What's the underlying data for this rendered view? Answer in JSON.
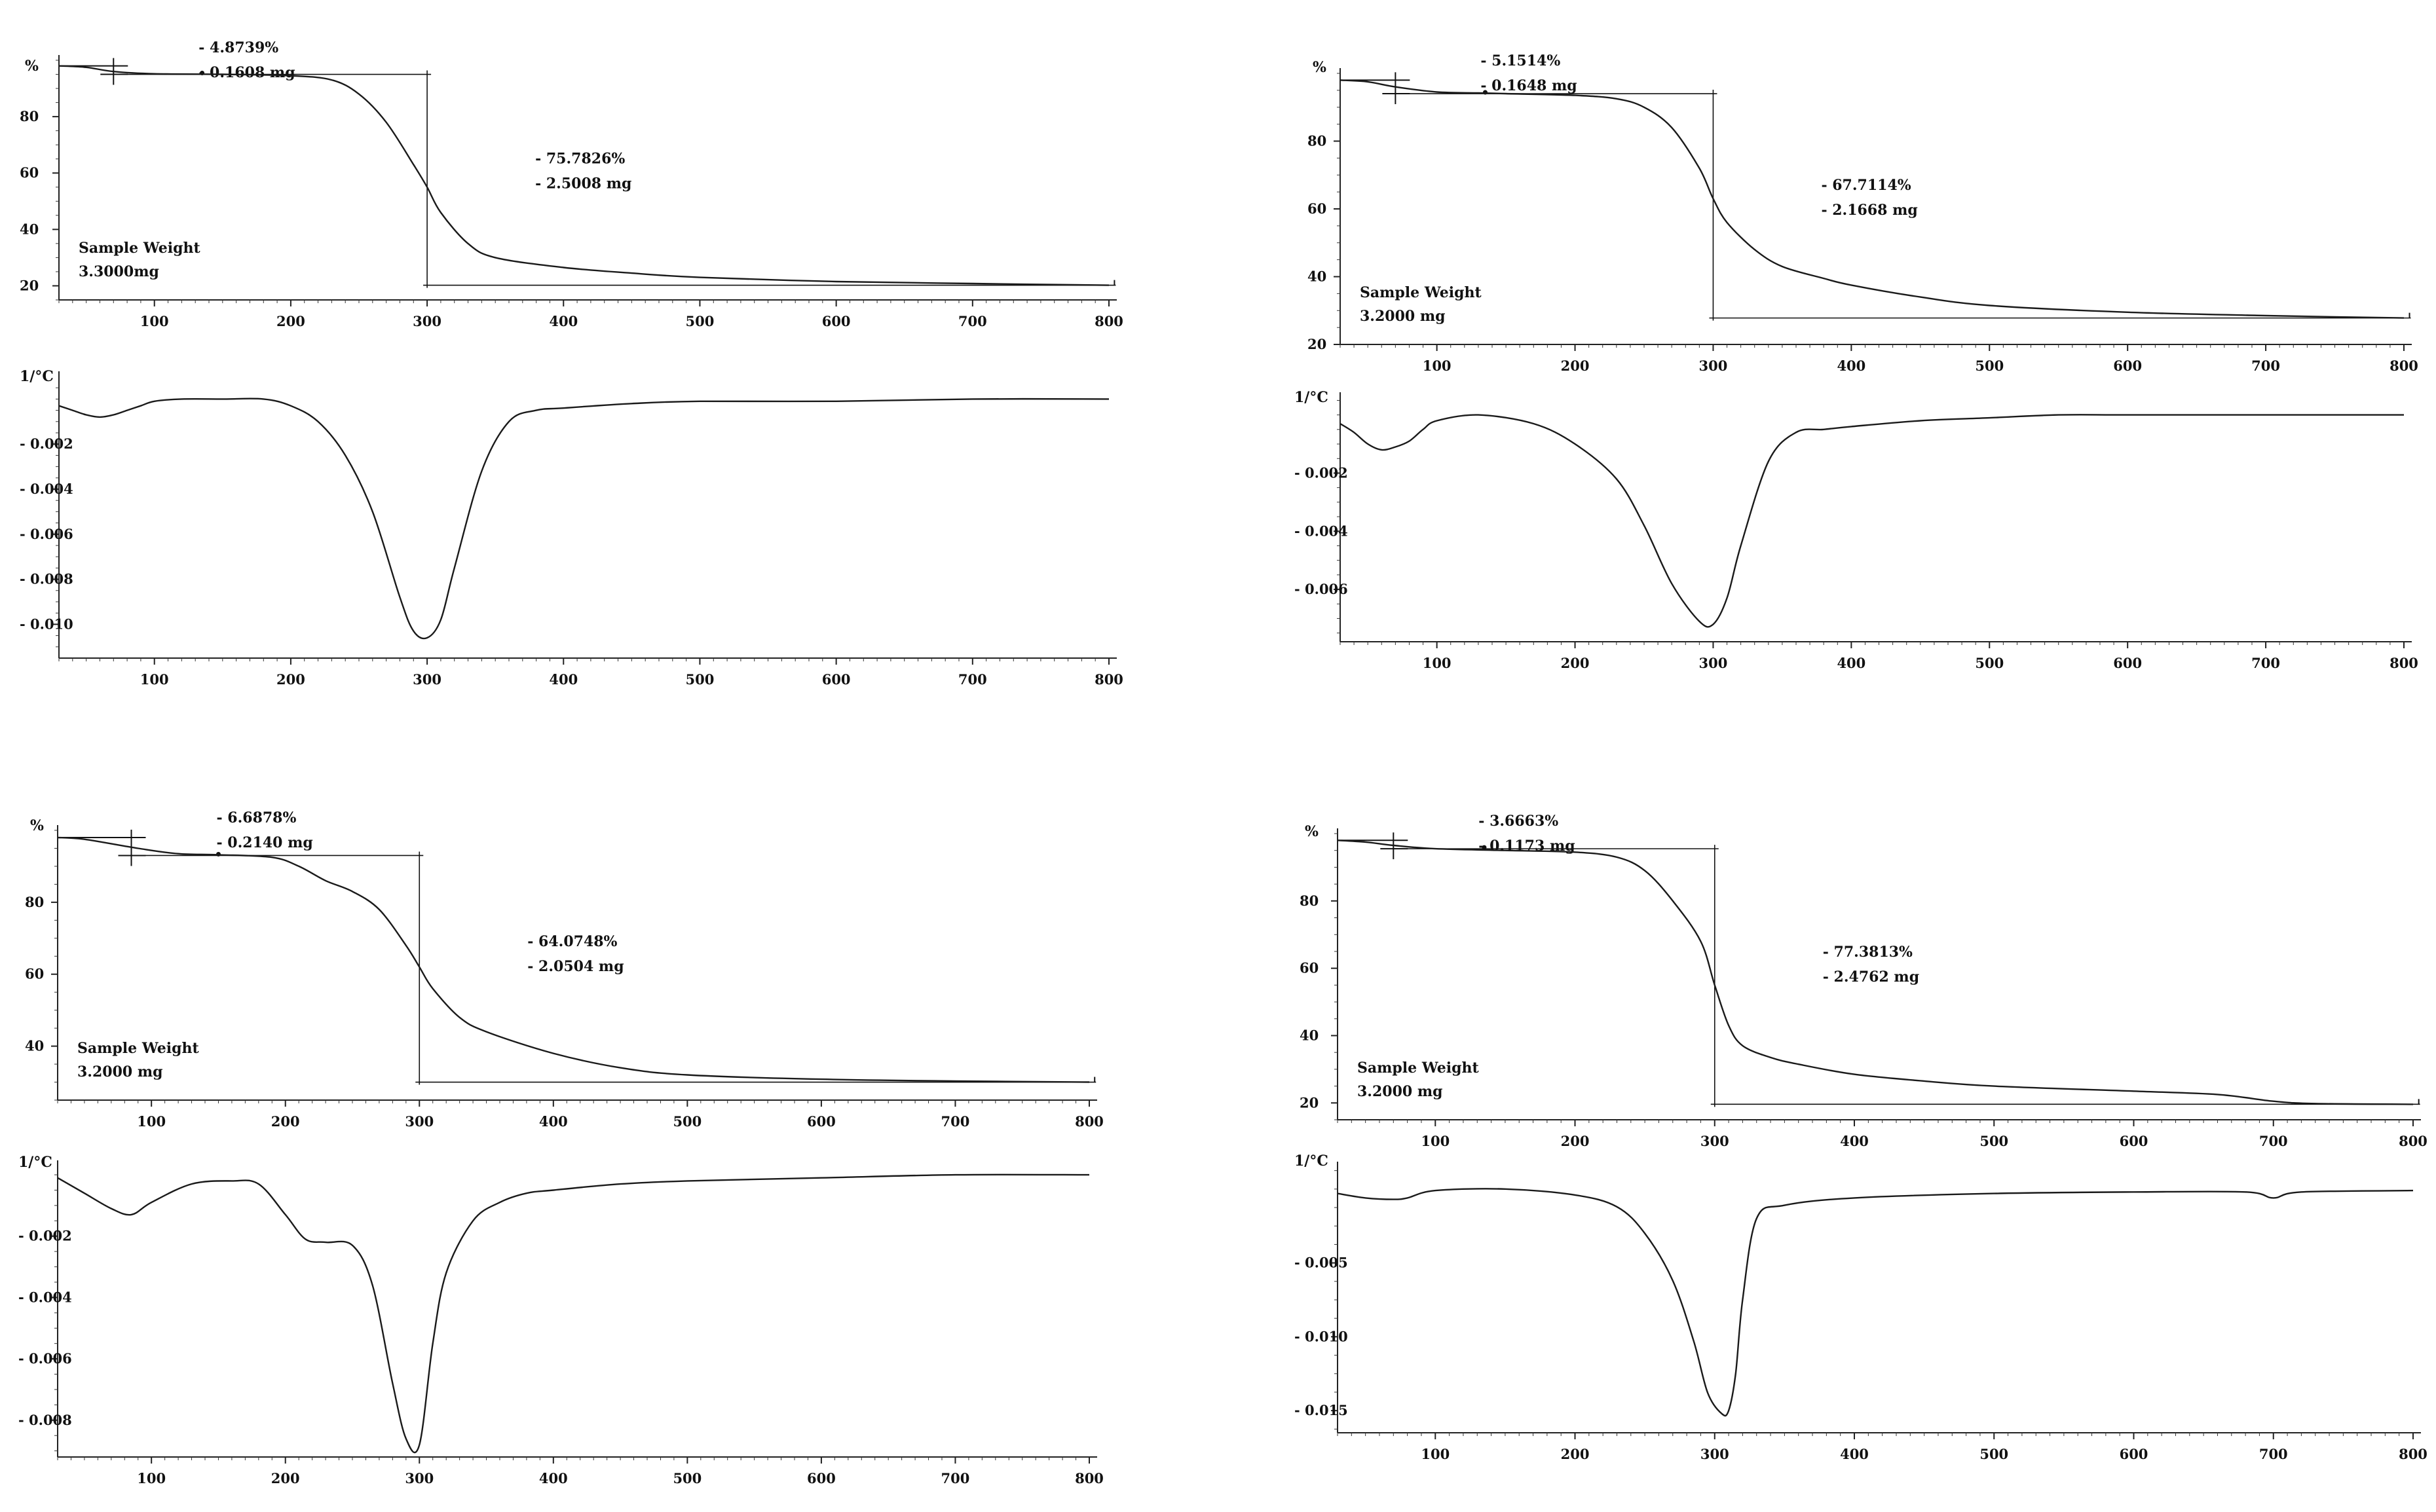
{
  "chart_data": [
    {
      "type": "line",
      "kind": "TGA",
      "y_unit_label": "%",
      "xlim": [
        30,
        800
      ],
      "ylim": [
        15,
        100
      ],
      "x_ticks": [
        100,
        200,
        300,
        400,
        500,
        600,
        700,
        800
      ],
      "y_ticks": [
        20,
        40,
        60,
        80
      ],
      "series": [
        {
          "x": [
            30,
            50,
            70,
            100,
            150,
            200,
            230,
            250,
            270,
            290,
            300,
            310,
            330,
            350,
            400,
            450,
            500,
            600,
            700,
            800
          ],
          "y": [
            98,
            97.5,
            96,
            95.2,
            95,
            94.5,
            93,
            88,
            78,
            63,
            55,
            46,
            35,
            30,
            26.5,
            24.5,
            23,
            21.5,
            20.8,
            20.2
          ]
        }
      ],
      "sample_label": "Sample Weight",
      "sample_value": "3.3000mg",
      "annotations": [
        {
          "pct": "- 4.8739%",
          "mg": "- 0.1608 mg",
          "x_value": 70
        },
        {
          "pct": "- 75.7826%",
          "mg": "- 2.5008 mg",
          "x_value": 300
        }
      ],
      "step1": {
        "x1": 30,
        "x2": 70,
        "y_top": 98,
        "y_bottom": 95
      },
      "step2": {
        "x_value": 300,
        "x_left": 70,
        "x_right": 805,
        "y_top": 95,
        "y_bottom": 20.2
      }
    },
    {
      "type": "line",
      "kind": "DTG",
      "y_unit_label": "1/°C",
      "xlim": [
        30,
        800
      ],
      "ylim": [
        -0.0115,
        0.001
      ],
      "x_ticks": [
        100,
        200,
        300,
        400,
        500,
        600,
        700,
        800
      ],
      "y_ticks": [
        -0.002,
        -0.004,
        -0.006,
        -0.008,
        -0.01
      ],
      "y_tick_labels": [
        "- 0.002",
        "- 0.004",
        "- 0.006",
        "- 0.008",
        "- 0.010"
      ],
      "series": [
        {
          "x": [
            30,
            40,
            50,
            60,
            70,
            80,
            90,
            100,
            120,
            150,
            180,
            200,
            220,
            240,
            260,
            280,
            290,
            300,
            310,
            320,
            340,
            360,
            380,
            400,
            450,
            500,
            600,
            700,
            800
          ],
          "y": [
            -0.0003,
            -0.0005,
            -0.0007,
            -0.0008,
            -0.0007,
            -0.0005,
            -0.0003,
            -0.0001,
            0.0,
            0.0,
            0.0,
            -0.0003,
            -0.001,
            -0.0025,
            -0.005,
            -0.0088,
            -0.0103,
            -0.0106,
            -0.0098,
            -0.0075,
            -0.0032,
            -0.001,
            -0.0005,
            -0.0004,
            -0.0002,
            -0.0001,
            -0.0001,
            0.0,
            0.0
          ]
        }
      ]
    },
    {
      "type": "line",
      "kind": "TGA",
      "y_unit_label": "%",
      "xlim": [
        30,
        800
      ],
      "ylim": [
        20,
        100
      ],
      "x_ticks": [
        100,
        200,
        300,
        400,
        500,
        600,
        700,
        800
      ],
      "y_ticks": [
        20,
        40,
        60,
        80
      ],
      "series": [
        {
          "x": [
            30,
            50,
            70,
            100,
            130,
            150,
            200,
            230,
            250,
            270,
            290,
            300,
            310,
            330,
            350,
            380,
            400,
            450,
            500,
            600,
            700,
            800
          ],
          "y": [
            98,
            97.5,
            96,
            94.5,
            94.2,
            94,
            93.5,
            92.5,
            90,
            84,
            72,
            63,
            56,
            48,
            43,
            39.5,
            37.5,
            34,
            31.5,
            29.5,
            28.5,
            27.8
          ]
        }
      ],
      "sample_label": "Sample Weight",
      "sample_value": "3.2000 mg",
      "annotations": [
        {
          "pct": "- 5.1514%",
          "mg": "- 0.1648 mg",
          "x_value": 70
        },
        {
          "pct": "- 67.7114%",
          "mg": "- 2.1668 mg",
          "x_value": 300
        }
      ],
      "step1": {
        "x1": 30,
        "x2": 70,
        "y_top": 98,
        "y_bottom": 94
      },
      "step2": {
        "x_value": 300,
        "x_left": 70,
        "x_right": 805,
        "y_top": 94,
        "y_bottom": 27.8
      }
    },
    {
      "type": "line",
      "kind": "DTG",
      "y_unit_label": "1/°C",
      "xlim": [
        30,
        800
      ],
      "ylim": [
        -0.0078,
        0.0006
      ],
      "x_ticks": [
        100,
        200,
        300,
        400,
        500,
        600,
        700,
        800
      ],
      "y_ticks": [
        -0.002,
        -0.004,
        -0.006
      ],
      "y_tick_labels": [
        "- 0.002",
        "- 0.004",
        "- 0.006"
      ],
      "series": [
        {
          "x": [
            30,
            40,
            50,
            60,
            70,
            80,
            90,
            100,
            130,
            170,
            200,
            230,
            250,
            270,
            290,
            300,
            310,
            320,
            340,
            360,
            380,
            400,
            450,
            500,
            550,
            600,
            700,
            800
          ],
          "y": [
            -0.0003,
            -0.0006,
            -0.001,
            -0.0012,
            -0.0011,
            -0.0009,
            -0.0005,
            -0.0002,
            0.0,
            -0.0003,
            -0.001,
            -0.0022,
            -0.0038,
            -0.0058,
            -0.0071,
            -0.0072,
            -0.0063,
            -0.0045,
            -0.0016,
            -0.0006,
            -0.0005,
            -0.0004,
            -0.0002,
            -0.0001,
            0.0,
            0.0,
            0.0,
            0.0
          ]
        }
      ]
    },
    {
      "type": "line",
      "kind": "TGA",
      "y_unit_label": "%",
      "xlim": [
        30,
        800
      ],
      "ylim": [
        25,
        100
      ],
      "x_ticks": [
        100,
        200,
        300,
        400,
        500,
        600,
        700,
        800
      ],
      "y_ticks": [
        40,
        60,
        80
      ],
      "series": [
        {
          "x": [
            30,
            50,
            90,
            120,
            150,
            190,
            210,
            230,
            250,
            270,
            290,
            300,
            310,
            330,
            350,
            400,
            450,
            500,
            600,
            700,
            800
          ],
          "y": [
            98,
            97.5,
            95,
            93.5,
            93.2,
            92.5,
            90,
            86,
            83,
            78,
            68,
            62,
            56,
            48,
            44,
            38,
            34,
            32,
            30.8,
            30.3,
            30
          ]
        }
      ],
      "sample_label": "Sample Weight",
      "sample_value": "3.2000 mg",
      "annotations": [
        {
          "pct": "- 6.6878%",
          "mg": "- 0.2140 mg",
          "x_value": 85
        },
        {
          "pct": "- 64.0748%",
          "mg": "- 2.0504 mg",
          "x_value": 300
        }
      ],
      "step1": {
        "x1": 30,
        "x2": 85,
        "y_top": 98,
        "y_bottom": 93
      },
      "step2": {
        "x_value": 300,
        "x_left": 85,
        "x_right": 805,
        "y_top": 93,
        "y_bottom": 30
      }
    },
    {
      "type": "line",
      "kind": "DTG",
      "y_unit_label": "1/°C",
      "xlim": [
        30,
        800
      ],
      "ylim": [
        -0.0092,
        0.0003
      ],
      "x_ticks": [
        100,
        200,
        300,
        400,
        500,
        600,
        700,
        800
      ],
      "y_ticks": [
        -0.002,
        -0.004,
        -0.006,
        -0.008
      ],
      "y_tick_labels": [
        "- 0.002",
        "- 0.004",
        "- 0.006",
        "- 0.008"
      ],
      "series": [
        {
          "x": [
            30,
            50,
            70,
            85,
            100,
            130,
            160,
            180,
            200,
            215,
            230,
            250,
            265,
            280,
            290,
            300,
            310,
            320,
            340,
            360,
            380,
            400,
            450,
            500,
            600,
            700,
            800
          ],
          "y": [
            -0.0001,
            -0.0006,
            -0.0011,
            -0.0013,
            -0.0009,
            -0.0003,
            -0.0002,
            -0.0003,
            -0.0013,
            -0.0021,
            -0.0022,
            -0.0023,
            -0.0036,
            -0.0068,
            -0.0086,
            -0.0088,
            -0.0055,
            -0.0032,
            -0.0015,
            -0.0009,
            -0.0006,
            -0.0005,
            -0.0003,
            -0.0002,
            -0.0001,
            0.0,
            0.0
          ]
        }
      ]
    },
    {
      "type": "line",
      "kind": "TGA",
      "y_unit_label": "%",
      "xlim": [
        30,
        800
      ],
      "ylim": [
        15,
        100
      ],
      "x_ticks": [
        100,
        200,
        300,
        400,
        500,
        600,
        700,
        800
      ],
      "y_ticks": [
        20,
        40,
        60,
        80
      ],
      "series": [
        {
          "x": [
            30,
            50,
            70,
            100,
            150,
            200,
            230,
            250,
            270,
            290,
            300,
            310,
            320,
            340,
            360,
            400,
            450,
            500,
            600,
            660,
            700,
            730,
            800
          ],
          "y": [
            98,
            97.5,
            96.5,
            95.5,
            95,
            94.5,
            93,
            89,
            80,
            68,
            55,
            43,
            37,
            33.5,
            31.5,
            28.5,
            26.5,
            25,
            23.5,
            22.5,
            20.5,
            19.8,
            19.6
          ]
        }
      ],
      "sample_label": "Sample Weight",
      "sample_value": "3.2000 mg",
      "annotations": [
        {
          "pct": "- 3.6663%",
          "mg": "- 0.1173 mg",
          "x_value": 70
        },
        {
          "pct": "- 77.3813%",
          "mg": "- 2.4762 mg",
          "x_value": 300
        }
      ],
      "step1": {
        "x1": 30,
        "x2": 70,
        "y_top": 98,
        "y_bottom": 95.5
      },
      "step2": {
        "x_value": 300,
        "x_left": 70,
        "x_right": 805,
        "y_top": 95.5,
        "y_bottom": 19.6
      }
    },
    {
      "type": "line",
      "kind": "DTG",
      "y_unit_label": "1/°C",
      "xlim": [
        30,
        800
      ],
      "ylim": [
        -0.0165,
        0.0015
      ],
      "x_ticks": [
        100,
        200,
        300,
        400,
        500,
        600,
        700,
        800
      ],
      "y_ticks": [
        -0.005,
        -0.01,
        -0.015
      ],
      "y_tick_labels": [
        "- 0.005",
        "- 0.010",
        "- 0.015"
      ],
      "series": [
        {
          "x": [
            30,
            50,
            70,
            80,
            100,
            150,
            200,
            230,
            250,
            270,
            285,
            295,
            305,
            310,
            315,
            320,
            330,
            350,
            400,
            500,
            600,
            680,
            700,
            720,
            800
          ],
          "y": [
            -0.0003,
            -0.0006,
            -0.0007,
            -0.0006,
            -0.0001,
            0.0,
            -0.0004,
            -0.0012,
            -0.003,
            -0.0062,
            -0.0103,
            -0.0138,
            -0.0152,
            -0.015,
            -0.0125,
            -0.0075,
            -0.002,
            -0.0011,
            -0.0006,
            -0.0003,
            -0.0002,
            -0.0002,
            -0.0006,
            -0.0002,
            -0.0001
          ]
        }
      ]
    }
  ]
}
